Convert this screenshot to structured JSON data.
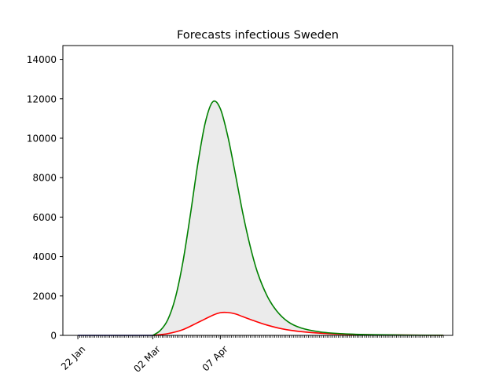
{
  "chart_data": {
    "type": "line",
    "title": "Forecasts infectious Sweden",
    "xlabel": "",
    "ylabel": "",
    "x_start": "2020-01-22",
    "x_end": "2020-08-04",
    "xlim": [
      "2020-01-14",
      "2020-08-09"
    ],
    "ylim": [
      0,
      14700
    ],
    "yticks": [
      0,
      2000,
      4000,
      6000,
      8000,
      10000,
      12000,
      14000
    ],
    "xticks": [
      {
        "date": "2020-01-22",
        "label": "22 Jan"
      },
      {
        "date": "2020-03-02",
        "label": "02 Mar"
      },
      {
        "date": "2020-04-07",
        "label": "07 Apr"
      }
    ],
    "minor_xticks": "daily",
    "grid": false,
    "legend": "none",
    "series": [
      {
        "role": "observed",
        "color": "#00008b",
        "points": [
          [
            "2020-01-22",
            0
          ],
          [
            "2020-02-29",
            0
          ],
          [
            "2020-03-02",
            5
          ]
        ]
      },
      {
        "role": "upper-forecast",
        "color": "#008000",
        "points": [
          [
            "2020-03-02",
            0
          ],
          [
            "2020-03-06",
            250
          ],
          [
            "2020-03-10",
            800
          ],
          [
            "2020-03-14",
            1900
          ],
          [
            "2020-03-18",
            3700
          ],
          [
            "2020-03-22",
            6100
          ],
          [
            "2020-03-26",
            8700
          ],
          [
            "2020-03-30",
            10800
          ],
          [
            "2020-04-03",
            11850
          ],
          [
            "2020-04-07",
            11500
          ],
          [
            "2020-04-11",
            10100
          ],
          [
            "2020-04-15",
            8200
          ],
          [
            "2020-04-19",
            6200
          ],
          [
            "2020-04-23",
            4500
          ],
          [
            "2020-04-27",
            3150
          ],
          [
            "2020-05-02",
            2000
          ],
          [
            "2020-05-07",
            1250
          ],
          [
            "2020-05-13",
            700
          ],
          [
            "2020-05-20",
            380
          ],
          [
            "2020-05-30",
            180
          ],
          [
            "2020-06-10",
            90
          ],
          [
            "2020-06-25",
            40
          ],
          [
            "2020-07-15",
            15
          ],
          [
            "2020-08-04",
            5
          ]
        ]
      },
      {
        "role": "lower-forecast",
        "color": "#ff0000",
        "points": [
          [
            "2020-03-02",
            0
          ],
          [
            "2020-03-10",
            90
          ],
          [
            "2020-03-18",
            290
          ],
          [
            "2020-03-26",
            650
          ],
          [
            "2020-04-03",
            1020
          ],
          [
            "2020-04-07",
            1150
          ],
          [
            "2020-04-11",
            1160
          ],
          [
            "2020-04-15",
            1090
          ],
          [
            "2020-04-19",
            950
          ],
          [
            "2020-04-25",
            740
          ],
          [
            "2020-05-02",
            520
          ],
          [
            "2020-05-10",
            330
          ],
          [
            "2020-05-20",
            190
          ],
          [
            "2020-06-01",
            100
          ],
          [
            "2020-06-15",
            50
          ],
          [
            "2020-07-05",
            20
          ],
          [
            "2020-08-04",
            5
          ]
        ]
      }
    ],
    "band_fill_color": "#ebebeb"
  }
}
